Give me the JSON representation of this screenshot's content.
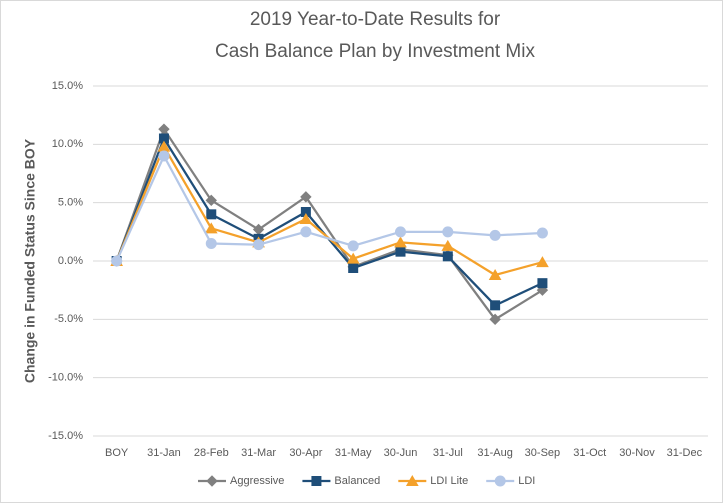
{
  "chart_data": {
    "type": "line",
    "title": [
      "2019 Year-to-Date Results for",
      "Cash Balance Plan by Investment Mix"
    ],
    "y_label": "Change in Funded Status Since BOY",
    "categories": [
      "BOY",
      "31-Jan",
      "28-Feb",
      "31-Mar",
      "30-Apr",
      "31-May",
      "30-Jun",
      "31-Jul",
      "31-Aug",
      "30-Sep",
      "31-Oct",
      "30-Nov",
      "31-Dec"
    ],
    "series": [
      {
        "name": "Aggressive",
        "color": "#808080",
        "marker": "diamond",
        "values": [
          0,
          11.3,
          5.2,
          2.7,
          5.5,
          -0.5,
          1.0,
          0.5,
          -5.0,
          -2.5,
          null,
          null,
          null
        ]
      },
      {
        "name": "Balanced",
        "color": "#1f4e79",
        "marker": "square",
        "values": [
          0,
          10.5,
          4.0,
          1.9,
          4.2,
          -0.6,
          0.8,
          0.4,
          -3.8,
          -1.9,
          null,
          null,
          null
        ]
      },
      {
        "name": "LDI Lite",
        "color": "#f4a12b",
        "marker": "triangle",
        "values": [
          0,
          9.8,
          2.8,
          1.6,
          3.6,
          0.2,
          1.6,
          1.3,
          -1.2,
          -0.1,
          null,
          null,
          null
        ]
      },
      {
        "name": "LDI",
        "color": "#b4c7e7",
        "marker": "circle",
        "values": [
          0,
          9.0,
          1.5,
          1.4,
          2.5,
          1.3,
          2.5,
          2.5,
          2.2,
          2.4,
          null,
          null,
          null
        ]
      }
    ],
    "ylim": [
      -15,
      15
    ],
    "yticks": [
      {
        "value": -15,
        "label": "-15.0%"
      },
      {
        "value": -10,
        "label": "-10.0%"
      },
      {
        "value": -5,
        "label": "-5.0%"
      },
      {
        "value": 0,
        "label": "0.0%"
      },
      {
        "value": 5,
        "label": "5.0%"
      },
      {
        "value": 10,
        "label": "10.0%"
      },
      {
        "value": 15,
        "label": "15.0%"
      }
    ],
    "grid": true,
    "legend": "bottom"
  }
}
